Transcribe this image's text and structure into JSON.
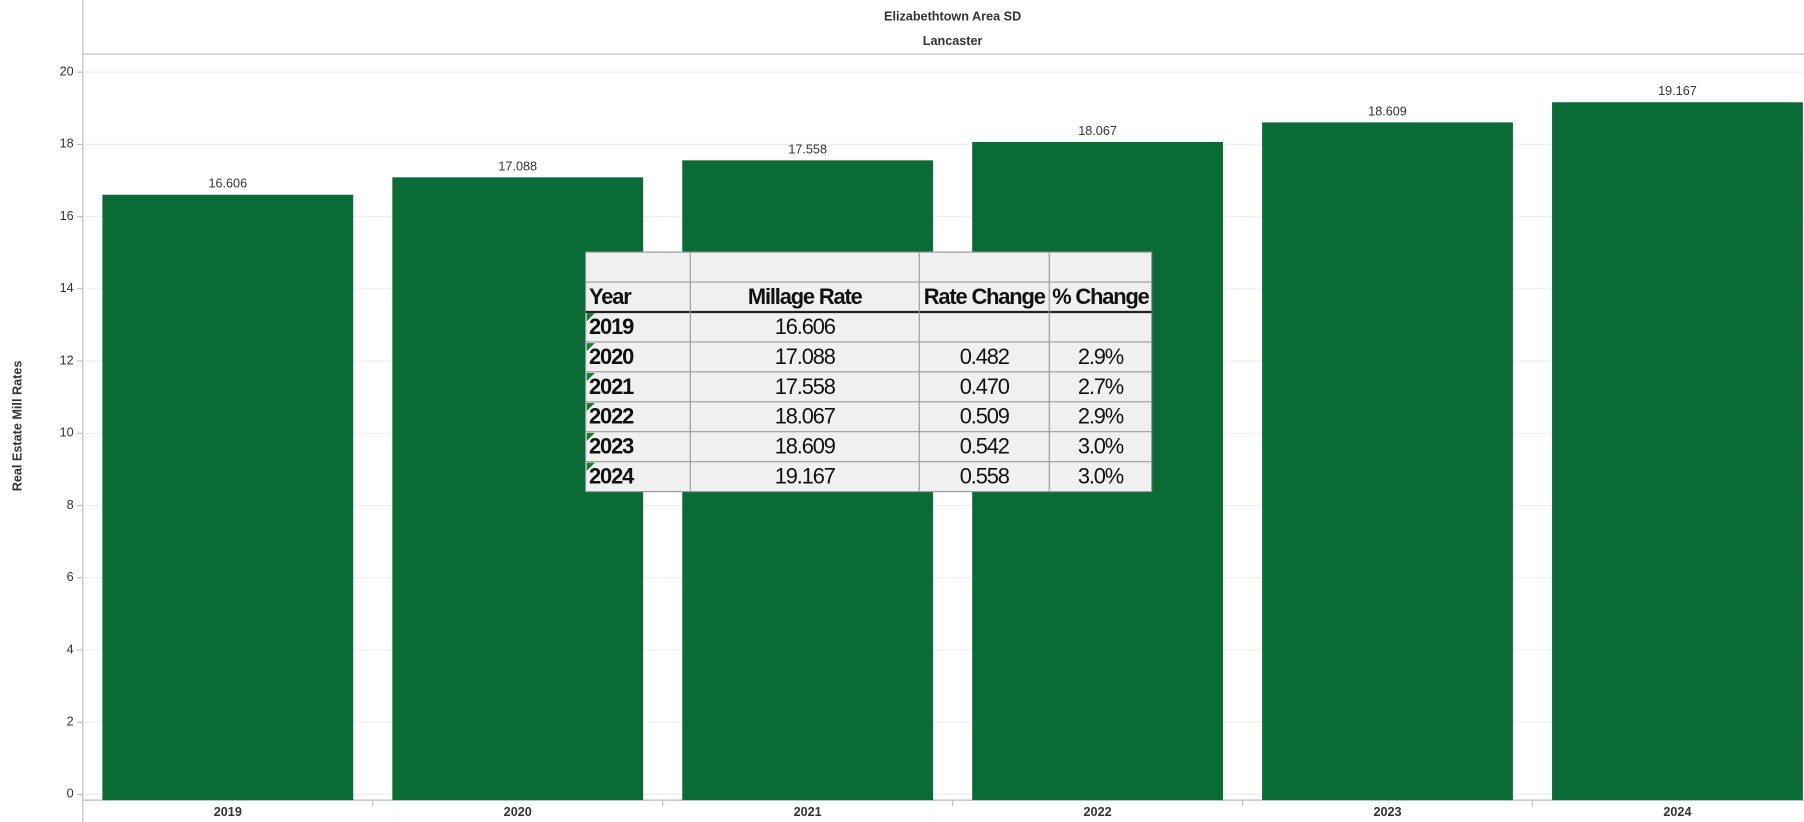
{
  "chart_data": {
    "type": "bar",
    "title": "Elizabethtown Area SD",
    "subtitle": "Lancaster",
    "y_label": "Real Estate Mill Rates",
    "categories": [
      "2019",
      "2020",
      "2021",
      "2022",
      "2023",
      "2024"
    ],
    "values": [
      16.606,
      17.088,
      17.558,
      18.067,
      18.609,
      19.167
    ],
    "color": "#0b6b37",
    "ylim": [
      0,
      20.5
    ],
    "yticks": [
      0,
      2,
      4,
      6,
      8,
      10,
      12,
      14,
      16,
      18,
      20
    ],
    "grid": true
  },
  "table": {
    "columns": [
      "Year",
      "Millage Rate",
      "Rate Change",
      "% Change"
    ],
    "rows": [
      [
        "2019",
        "16.606",
        null,
        null
      ],
      [
        "2020",
        "17.088",
        "0.482",
        "2.9%"
      ],
      [
        "2021",
        "17.558",
        "0.470",
        "2.7%"
      ],
      [
        "2022",
        "18.067",
        "0.509",
        "2.9%"
      ],
      [
        "2023",
        "18.609",
        "0.542",
        "3.0%"
      ],
      [
        "2024",
        "19.167",
        "0.558",
        "3.0%"
      ]
    ]
  }
}
